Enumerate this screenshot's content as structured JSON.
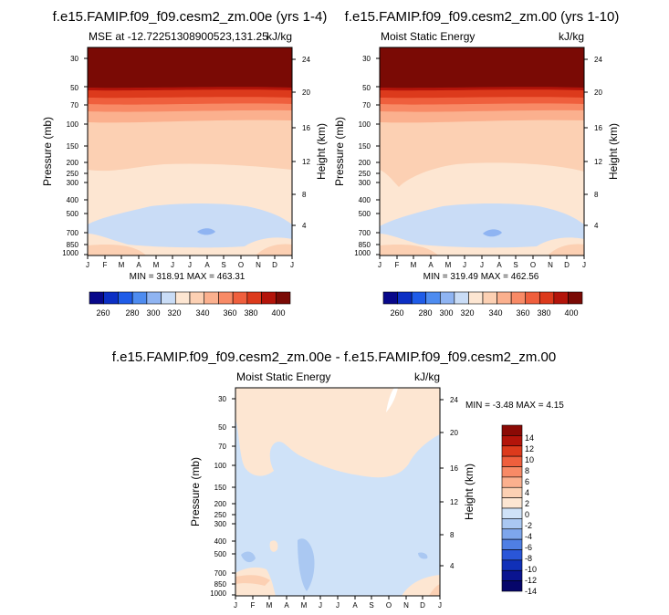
{
  "chart_data": [
    {
      "type": "heatmap",
      "title": "f.e15.FAMIP.f09_f09.cesm2_zm.00e (yrs 1-4)",
      "left_label": "MSE at -12.72251308900523,131.25",
      "right_label": "kJ/kg",
      "xlabel": "",
      "ylabel": "Pressure (mb)",
      "ylabel_right": "Height (km)",
      "x_ticks": [
        "J",
        "F",
        "M",
        "A",
        "M",
        "J",
        "J",
        "A",
        "S",
        "O",
        "N",
        "D",
        "J"
      ],
      "y_ticks": [
        30,
        50,
        70,
        100,
        150,
        200,
        250,
        300,
        400,
        500,
        700,
        850,
        1000
      ],
      "y_ticks_right": [
        24,
        20,
        16,
        12,
        8,
        4
      ],
      "ylim": [
        1000,
        20
      ],
      "stats": "MIN = 318.91 MAX = 463.31",
      "colorbar": {
        "orientation": "horizontal",
        "labels": [
          260,
          280,
          300,
          320,
          340,
          360,
          380,
          400
        ],
        "colors": [
          "#08088a",
          "#0c2fc4",
          "#1f5ce8",
          "#4e8cf0",
          "#8fb4f2",
          "#c9dcf6",
          "#fde6d2",
          "#fcd0b3",
          "#fbb08e",
          "#f88a66",
          "#ef5f3d",
          "#dc3a1c",
          "#b3140a",
          "#7a0a05"
        ]
      }
    },
    {
      "type": "heatmap",
      "title": "f.e15.FAMIP.f09_f09.cesm2_zm.00 (yrs 1-10)",
      "left_label": "Moist Static Energy",
      "right_label": "kJ/kg",
      "xlabel": "",
      "ylabel": "Pressure (mb)",
      "ylabel_right": "Height (km)",
      "x_ticks": [
        "J",
        "F",
        "M",
        "A",
        "M",
        "J",
        "J",
        "A",
        "S",
        "O",
        "N",
        "D",
        "J"
      ],
      "y_ticks": [
        30,
        50,
        70,
        100,
        150,
        200,
        250,
        300,
        400,
        500,
        700,
        850,
        1000
      ],
      "y_ticks_right": [
        24,
        20,
        16,
        12,
        8,
        4
      ],
      "ylim": [
        1000,
        20
      ],
      "stats": "MIN = 319.49 MAX = 462.56",
      "colorbar": {
        "orientation": "horizontal",
        "labels": [
          260,
          280,
          300,
          320,
          340,
          360,
          380,
          400
        ],
        "colors": [
          "#08088a",
          "#0c2fc4",
          "#1f5ce8",
          "#4e8cf0",
          "#8fb4f2",
          "#c9dcf6",
          "#fde6d2",
          "#fcd0b3",
          "#fbb08e",
          "#f88a66",
          "#ef5f3d",
          "#dc3a1c",
          "#b3140a",
          "#7a0a05"
        ]
      }
    },
    {
      "type": "heatmap",
      "title": "f.e15.FAMIP.f09_f09.cesm2_zm.00e - f.e15.FAMIP.f09_f09.cesm2_zm.00",
      "left_label": "Moist Static Energy",
      "right_label": "kJ/kg",
      "xlabel": "",
      "ylabel": "Pressure (mb)",
      "ylabel_right": "Height (km)",
      "x_ticks": [
        "J",
        "F",
        "M",
        "A",
        "M",
        "J",
        "J",
        "A",
        "S",
        "O",
        "N",
        "D",
        "J"
      ],
      "y_ticks": [
        30,
        50,
        70,
        100,
        150,
        200,
        250,
        300,
        400,
        500,
        700,
        850,
        1000
      ],
      "y_ticks_right": [
        24,
        20,
        16,
        12,
        8,
        4
      ],
      "ylim": [
        1000,
        20
      ],
      "stats": "MIN = -3.48 MAX =  4.15",
      "colorbar": {
        "orientation": "vertical",
        "labels": [
          14,
          12,
          10,
          8,
          6,
          4,
          2,
          0,
          -2,
          -4,
          -6,
          -8,
          -10,
          -12,
          -14
        ],
        "colors": [
          "#8b0a05",
          "#b3140a",
          "#dc3a1c",
          "#ef5f3d",
          "#f88a66",
          "#fbb08e",
          "#fcd0b3",
          "#fde6d2",
          "#cfe2f8",
          "#aac8f2",
          "#7ea6ec",
          "#4f7fe4",
          "#2a56d8",
          "#1030b8",
          "#0a1490",
          "#06066a"
        ]
      }
    }
  ]
}
